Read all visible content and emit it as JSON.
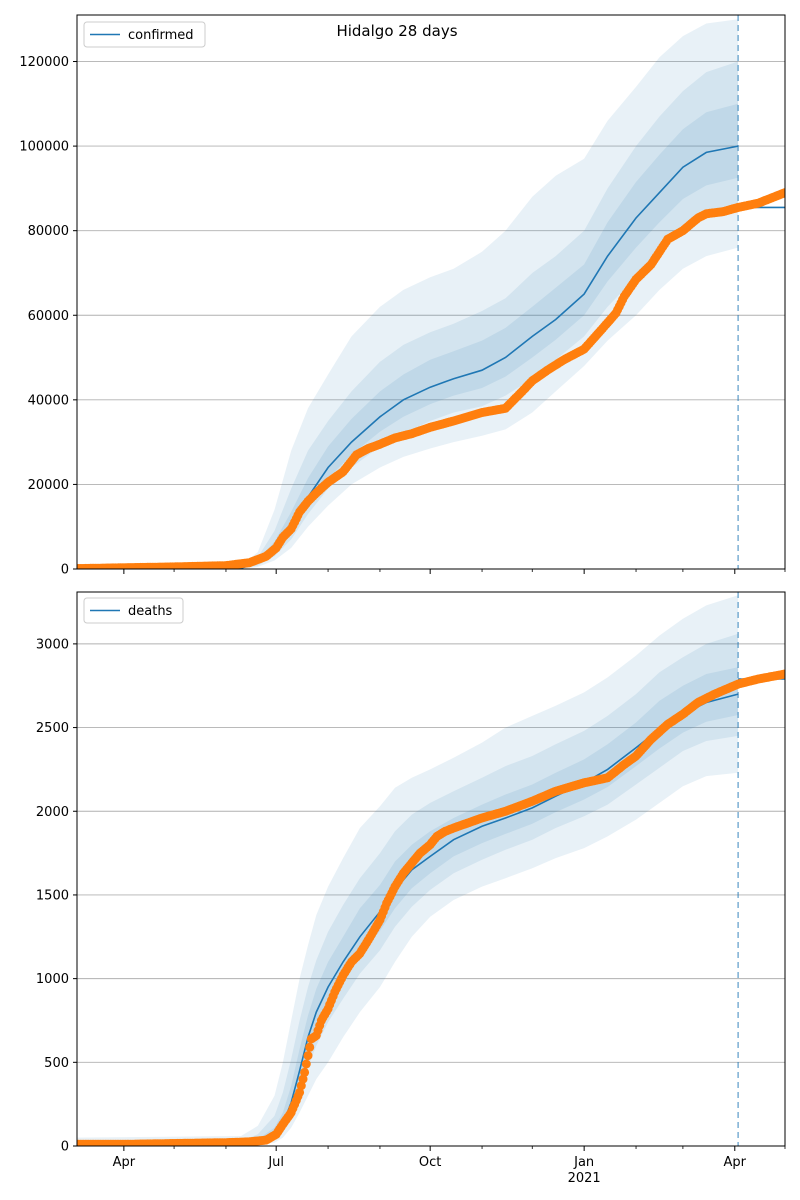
{
  "title": "Hidalgo 28 days",
  "colors": {
    "model": "#1f77b4",
    "observed": "#ff7f0e",
    "band": "#1f77b4",
    "grid": "#b0b0b0",
    "forecast_line": "#1f77b4"
  },
  "x_axis": {
    "ticks": [
      {
        "date": "2020-04-01",
        "label": "Apr",
        "sublabel": ""
      },
      {
        "date": "2020-07-01",
        "label": "Jul",
        "sublabel": ""
      },
      {
        "date": "2020-10-01",
        "label": "Oct",
        "sublabel": ""
      },
      {
        "date": "2021-01-01",
        "label": "Jan",
        "sublabel": "2021"
      },
      {
        "date": "2021-04-01",
        "label": "Apr",
        "sublabel": ""
      }
    ],
    "minor_ticks": [
      "2020-05-01",
      "2020-06-01",
      "2020-08-01",
      "2020-09-01",
      "2020-11-01",
      "2020-12-01",
      "2021-02-01",
      "2021-03-01",
      "2021-05-01"
    ],
    "range": [
      "2020-03-04",
      "2021-05-01"
    ]
  },
  "chart_data": [
    {
      "type": "line",
      "legend": "confirmed",
      "legend_position": "top-left",
      "grid": "horizontal",
      "ylim": [
        0,
        131000
      ],
      "yticks": [
        0,
        20000,
        40000,
        60000,
        80000,
        100000,
        120000
      ],
      "forecast_date": "2021-04-03",
      "series": [
        {
          "name": "confirmed",
          "kind": "model-median",
          "x": [
            "2020-03-04",
            "2020-06-10",
            "2020-06-20",
            "2020-06-30",
            "2020-07-10",
            "2020-07-20",
            "2020-08-01",
            "2020-08-15",
            "2020-09-01",
            "2020-09-15",
            "2020-10-01",
            "2020-10-15",
            "2020-11-01",
            "2020-11-15",
            "2020-12-01",
            "2020-12-15",
            "2021-01-01",
            "2021-01-15",
            "2021-02-01",
            "2021-02-15",
            "2021-03-01",
            "2021-03-15",
            "2021-04-03"
          ],
          "values": [
            0,
            200,
            1500,
            4500,
            10000,
            17000,
            24000,
            30000,
            36000,
            40000,
            43000,
            45000,
            47000,
            50000,
            55000,
            59000,
            65000,
            74000,
            83000,
            89000,
            95000,
            98500,
            100000
          ]
        },
        {
          "name": "model continuation",
          "kind": "model-flat",
          "x": [
            "2021-04-03",
            "2021-05-01"
          ],
          "values": [
            85500,
            85500
          ]
        }
      ],
      "bands": [
        {
          "level": "outer",
          "x": [
            "2020-03-04",
            "2020-06-10",
            "2020-06-20",
            "2020-06-30",
            "2020-07-10",
            "2020-07-20",
            "2020-08-01",
            "2020-08-15",
            "2020-09-01",
            "2020-09-15",
            "2020-10-01",
            "2020-10-15",
            "2020-11-01",
            "2020-11-15",
            "2020-12-01",
            "2020-12-15",
            "2021-01-01",
            "2021-01-15",
            "2021-02-01",
            "2021-02-15",
            "2021-03-01",
            "2021-03-15",
            "2021-04-03"
          ],
          "lower": [
            0,
            0,
            500,
            2000,
            5000,
            10000,
            15000,
            20000,
            24000,
            26500,
            28500,
            30000,
            31500,
            33000,
            37000,
            42000,
            48000,
            54000,
            60000,
            66000,
            71000,
            74000,
            76000
          ],
          "upper": [
            0,
            800,
            4000,
            14000,
            28000,
            38000,
            46000,
            55000,
            62000,
            66000,
            69000,
            71000,
            75000,
            80000,
            88000,
            93000,
            97000,
            106000,
            114000,
            121000,
            126000,
            129000,
            130000
          ]
        },
        {
          "level": "middle",
          "x": [
            "2020-03-04",
            "2020-06-10",
            "2020-06-20",
            "2020-06-30",
            "2020-07-10",
            "2020-07-20",
            "2020-08-01",
            "2020-08-15",
            "2020-09-01",
            "2020-09-15",
            "2020-10-01",
            "2020-10-15",
            "2020-11-01",
            "2020-11-15",
            "2020-12-01",
            "2020-12-15",
            "2021-01-01",
            "2021-01-15",
            "2021-02-01",
            "2021-02-15",
            "2021-03-01",
            "2021-03-15",
            "2021-04-03"
          ],
          "lower": [
            0,
            50,
            800,
            3000,
            7000,
            13000,
            19000,
            24000,
            29000,
            32000,
            35000,
            37000,
            38500,
            41000,
            45000,
            49500,
            55000,
            62000,
            69000,
            75000,
            80000,
            83000,
            85000
          ],
          "upper": [
            0,
            500,
            2800,
            9000,
            19000,
            28000,
            35000,
            42000,
            49000,
            53000,
            56000,
            58000,
            61000,
            64000,
            70000,
            74000,
            80000,
            90000,
            100000,
            107000,
            113000,
            117500,
            120000
          ]
        },
        {
          "level": "inner",
          "x": [
            "2020-03-04",
            "2020-06-10",
            "2020-06-20",
            "2020-06-30",
            "2020-07-10",
            "2020-07-20",
            "2020-08-01",
            "2020-08-15",
            "2020-09-01",
            "2020-09-15",
            "2020-10-01",
            "2020-10-15",
            "2020-11-01",
            "2020-11-15",
            "2020-12-01",
            "2020-12-15",
            "2021-01-01",
            "2021-01-15",
            "2021-02-01",
            "2021-02-15",
            "2021-03-01",
            "2021-03-15",
            "2021-04-03"
          ],
          "lower": [
            0,
            100,
            1100,
            3700,
            8400,
            15000,
            21400,
            27000,
            32500,
            36000,
            39000,
            41000,
            42800,
            45500,
            50000,
            54200,
            60000,
            68000,
            76000,
            82000,
            87500,
            90700,
            92500
          ],
          "upper": [
            0,
            300,
            2000,
            6500,
            13500,
            21500,
            29000,
            35500,
            42000,
            46000,
            49500,
            51500,
            54000,
            57000,
            62000,
            66500,
            72000,
            82000,
            91500,
            98000,
            104000,
            108000,
            110000
          ]
        }
      ],
      "observed": {
        "name": "observed confirmed",
        "x": [
          "2020-03-04",
          "2020-04-01",
          "2020-05-01",
          "2020-06-01",
          "2020-06-15",
          "2020-06-25",
          "2020-07-01",
          "2020-07-05",
          "2020-07-10",
          "2020-07-15",
          "2020-07-20",
          "2020-07-25",
          "2020-08-01",
          "2020-08-10",
          "2020-08-18",
          "2020-08-25",
          "2020-09-01",
          "2020-09-10",
          "2020-09-20",
          "2020-10-01",
          "2020-10-15",
          "2020-11-01",
          "2020-11-15",
          "2020-11-25",
          "2020-12-01",
          "2020-12-10",
          "2020-12-20",
          "2021-01-01",
          "2021-01-10",
          "2021-01-20",
          "2021-01-25",
          "2021-02-01",
          "2021-02-10",
          "2021-02-20",
          "2021-03-01",
          "2021-03-10",
          "2021-03-15",
          "2021-03-25",
          "2021-04-03",
          "2021-04-15",
          "2021-05-01"
        ],
        "values": [
          100,
          300,
          500,
          800,
          1500,
          3000,
          5000,
          7500,
          9500,
          13500,
          16000,
          18000,
          20500,
          23000,
          27000,
          28500,
          29500,
          31000,
          32000,
          33500,
          35000,
          37000,
          38000,
          42000,
          44500,
          47000,
          49500,
          52000,
          56000,
          60500,
          64500,
          68500,
          72000,
          78000,
          80000,
          83000,
          84000,
          84500,
          85500,
          86500,
          89000
        ]
      }
    },
    {
      "type": "line",
      "legend": "deaths",
      "legend_position": "top-left",
      "grid": "horizontal",
      "ylim": [
        0,
        3310
      ],
      "yticks": [
        0,
        500,
        1000,
        1500,
        2000,
        2500,
        3000
      ],
      "forecast_date": "2021-04-03",
      "series": [
        {
          "name": "deaths",
          "kind": "model-median",
          "x": [
            "2020-03-04",
            "2020-06-10",
            "2020-06-20",
            "2020-06-30",
            "2020-07-05",
            "2020-07-10",
            "2020-07-15",
            "2020-07-20",
            "2020-07-25",
            "2020-08-01",
            "2020-08-10",
            "2020-08-20",
            "2020-09-01",
            "2020-09-10",
            "2020-09-20",
            "2020-10-01",
            "2020-10-15",
            "2020-11-01",
            "2020-11-15",
            "2020-12-01",
            "2020-12-15",
            "2021-01-01",
            "2021-01-15",
            "2021-02-01",
            "2021-02-15",
            "2021-03-01",
            "2021-03-15",
            "2021-04-03"
          ],
          "values": [
            0,
            5,
            20,
            60,
            130,
            260,
            450,
            650,
            800,
            950,
            1100,
            1250,
            1400,
            1530,
            1650,
            1730,
            1830,
            1910,
            1960,
            2020,
            2090,
            2170,
            2250,
            2380,
            2490,
            2580,
            2650,
            2700
          ]
        },
        {
          "name": "model continuation",
          "kind": "model-flat",
          "x": [
            "2021-04-03",
            "2021-05-01"
          ],
          "values": [
            2790,
            2790
          ]
        }
      ],
      "bands": [
        {
          "level": "outer",
          "x": [
            "2020-03-04",
            "2020-06-10",
            "2020-06-20",
            "2020-06-30",
            "2020-07-05",
            "2020-07-10",
            "2020-07-15",
            "2020-07-20",
            "2020-07-25",
            "2020-08-01",
            "2020-08-10",
            "2020-08-20",
            "2020-09-01",
            "2020-09-10",
            "2020-09-20",
            "2020-10-01",
            "2020-10-15",
            "2020-11-01",
            "2020-11-15",
            "2020-12-01",
            "2020-12-15",
            "2021-01-01",
            "2021-01-15",
            "2021-02-01",
            "2021-02-15",
            "2021-03-01",
            "2021-03-15",
            "2021-04-03"
          ],
          "lower": [
            0,
            0,
            5,
            20,
            50,
            110,
            200,
            300,
            400,
            500,
            650,
            800,
            950,
            1100,
            1250,
            1370,
            1470,
            1550,
            1600,
            1660,
            1720,
            1780,
            1850,
            1950,
            2050,
            2150,
            2210,
            2230
          ],
          "upper": [
            50,
            60,
            120,
            300,
            500,
            750,
            1000,
            1200,
            1380,
            1550,
            1720,
            1900,
            2030,
            2140,
            2200,
            2250,
            2320,
            2410,
            2500,
            2570,
            2630,
            2710,
            2800,
            2930,
            3050,
            3150,
            3230,
            3290
          ]
        },
        {
          "level": "middle",
          "x": [
            "2020-03-04",
            "2020-06-10",
            "2020-06-20",
            "2020-06-30",
            "2020-07-05",
            "2020-07-10",
            "2020-07-15",
            "2020-07-20",
            "2020-07-25",
            "2020-08-01",
            "2020-08-10",
            "2020-08-20",
            "2020-09-01",
            "2020-09-10",
            "2020-09-20",
            "2020-10-01",
            "2020-10-15",
            "2020-11-01",
            "2020-11-15",
            "2020-12-01",
            "2020-12-15",
            "2021-01-01",
            "2021-01-15",
            "2021-02-01",
            "2021-02-15",
            "2021-03-01",
            "2021-03-15",
            "2021-04-03"
          ],
          "lower": [
            0,
            1,
            10,
            35,
            80,
            170,
            320,
            470,
            600,
            740,
            880,
            1030,
            1170,
            1310,
            1430,
            1530,
            1630,
            1710,
            1770,
            1830,
            1900,
            1970,
            2040,
            2160,
            2260,
            2360,
            2420,
            2450
          ],
          "upper": [
            20,
            30,
            70,
            180,
            320,
            520,
            750,
            950,
            1110,
            1280,
            1440,
            1600,
            1750,
            1880,
            1980,
            2050,
            2120,
            2200,
            2270,
            2330,
            2400,
            2480,
            2570,
            2700,
            2830,
            2920,
            3000,
            3060
          ]
        },
        {
          "level": "inner",
          "x": [
            "2020-03-04",
            "2020-06-10",
            "2020-06-20",
            "2020-06-30",
            "2020-07-05",
            "2020-07-10",
            "2020-07-15",
            "2020-07-20",
            "2020-07-25",
            "2020-08-01",
            "2020-08-10",
            "2020-08-20",
            "2020-09-01",
            "2020-09-10",
            "2020-09-20",
            "2020-10-01",
            "2020-10-15",
            "2020-11-01",
            "2020-11-15",
            "2020-12-01",
            "2020-12-15",
            "2021-01-01",
            "2021-01-15",
            "2021-02-01",
            "2021-02-15",
            "2021-03-01",
            "2021-03-15",
            "2021-04-03"
          ],
          "lower": [
            0,
            3,
            15,
            48,
            105,
            215,
            385,
            560,
            700,
            845,
            990,
            1140,
            1285,
            1420,
            1540,
            1630,
            1730,
            1810,
            1865,
            1925,
            1995,
            2070,
            2145,
            2270,
            2375,
            2470,
            2535,
            2575
          ],
          "upper": [
            8,
            12,
            40,
            110,
            200,
            360,
            580,
            780,
            940,
            1100,
            1250,
            1420,
            1560,
            1700,
            1800,
            1880,
            1960,
            2040,
            2100,
            2160,
            2230,
            2310,
            2400,
            2530,
            2660,
            2750,
            2820,
            2860
          ]
        }
      ],
      "observed": {
        "name": "observed deaths",
        "x": [
          "2020-03-04",
          "2020-04-01",
          "2020-05-01",
          "2020-06-01",
          "2020-06-15",
          "2020-06-25",
          "2020-07-01",
          "2020-07-05",
          "2020-07-10",
          "2020-07-15",
          "2020-07-18",
          "2020-07-20",
          "2020-07-22",
          "2020-07-25",
          "2020-07-28",
          "2020-08-01",
          "2020-08-05",
          "2020-08-10",
          "2020-08-15",
          "2020-08-20",
          "2020-08-25",
          "2020-09-01",
          "2020-09-05",
          "2020-09-10",
          "2020-09-15",
          "2020-09-20",
          "2020-09-25",
          "2020-10-01",
          "2020-10-05",
          "2020-10-10",
          "2020-10-15",
          "2020-11-01",
          "2020-11-15",
          "2020-12-01",
          "2020-12-15",
          "2021-01-01",
          "2021-01-15",
          "2021-01-25",
          "2021-02-01",
          "2021-02-10",
          "2021-02-20",
          "2021-03-01",
          "2021-03-10",
          "2021-03-20",
          "2021-04-03",
          "2021-04-15",
          "2021-05-01"
        ],
        "values": [
          10,
          10,
          15,
          20,
          25,
          35,
          70,
          130,
          200,
          320,
          440,
          540,
          640,
          660,
          750,
          820,
          920,
          1020,
          1100,
          1150,
          1230,
          1350,
          1450,
          1550,
          1630,
          1690,
          1750,
          1800,
          1850,
          1880,
          1900,
          1960,
          2000,
          2060,
          2120,
          2170,
          2200,
          2280,
          2330,
          2430,
          2520,
          2580,
          2650,
          2700,
          2760,
          2790,
          2820
        ]
      }
    }
  ]
}
